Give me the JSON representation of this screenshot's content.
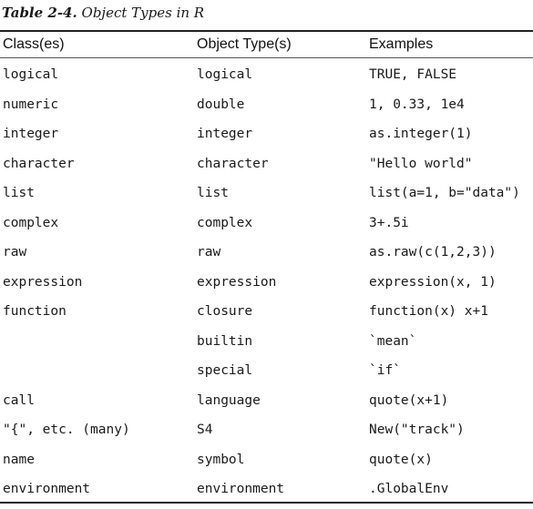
{
  "caption": {
    "label": "Table 2-4.",
    "title": "Object Types in R"
  },
  "table": {
    "headers": [
      "Class(es)",
      "Object Type(s)",
      "Examples"
    ],
    "rows": [
      [
        "logical",
        "logical",
        "TRUE, FALSE"
      ],
      [
        "numeric",
        "double",
        "1, 0.33, 1e4"
      ],
      [
        "integer",
        "integer",
        "as.integer(1)"
      ],
      [
        "character",
        "character",
        "\"Hello world\""
      ],
      [
        "list",
        "list",
        "list(a=1, b=\"data\")"
      ],
      [
        "complex",
        "complex",
        "3+.5i"
      ],
      [
        "raw",
        "raw",
        "as.raw(c(1,2,3))"
      ],
      [
        "expression",
        "expression",
        "expression(x, 1)"
      ],
      [
        "function",
        "closure",
        "function(x) x+1"
      ],
      [
        "",
        "builtin",
        "`mean`"
      ],
      [
        "",
        "special",
        "`if`"
      ],
      [
        "call",
        "language",
        "quote(x+1)"
      ],
      [
        "\"{\", etc. (many)",
        "S4",
        "New(\"track\")"
      ],
      [
        "name",
        "symbol",
        "quote(x)"
      ],
      [
        "environment",
        "environment",
        ".GlobalEnv"
      ]
    ]
  }
}
